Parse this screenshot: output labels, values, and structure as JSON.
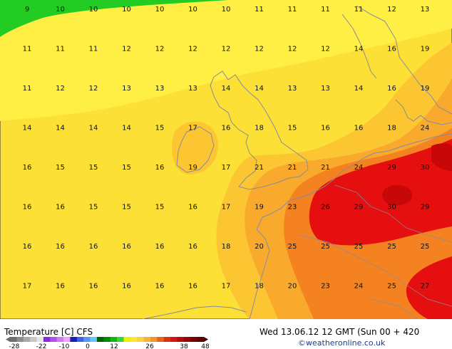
{
  "legend": {
    "title": "Temperature [C] CFS",
    "ticks": [
      "-28",
      "-22",
      "-10",
      "0",
      "12",
      "26",
      "38",
      "48"
    ],
    "colors": [
      "#6e6e6e",
      "#8c8c8c",
      "#aaaaaa",
      "#c8c8c8",
      "#e6e6e6",
      "#8a2be2",
      "#b450e6",
      "#d278f0",
      "#f0a0ff",
      "#1e1eb4",
      "#3c64e6",
      "#5a96f0",
      "#64c8fa",
      "#006400",
      "#008c00",
      "#14b414",
      "#3cd23c",
      "#f0f000",
      "#ffe632",
      "#fad23c",
      "#f5b43c",
      "#f09628",
      "#e6641e",
      "#dc3214",
      "#d21414",
      "#b40a0a",
      "#960505",
      "#780000",
      "#5a0000"
    ],
    "unit_colors_note": ""
  },
  "valid_time": "Wed 13.06.12 12 GMT (Sun 00 + 420",
  "credit": "©weatheronline.co.uk",
  "map_colors": {
    "green": "#22cc22",
    "lightyellow": "#ffee44",
    "yellow": "#fde035",
    "lightorange": "#fcc632",
    "orange": "#f9aa2c",
    "darkorange": "#f58220",
    "red": "#e60f0f",
    "darkred": "#c80808",
    "coast": "#8a8aa0"
  },
  "grid_rows": [
    [
      "9",
      "10",
      "10",
      "10",
      "10",
      "10",
      "10",
      "11",
      "11",
      "11",
      "11",
      "12",
      "13"
    ],
    [
      "11",
      "11",
      "11",
      "12",
      "12",
      "12",
      "12",
      "12",
      "12",
      "12",
      "14",
      "16",
      "19"
    ],
    [
      "11",
      "12",
      "12",
      "13",
      "13",
      "13",
      "14",
      "14",
      "13",
      "13",
      "14",
      "16",
      "19"
    ],
    [
      "14",
      "14",
      "14",
      "14",
      "15",
      "17",
      "16",
      "18",
      "15",
      "16",
      "16",
      "18",
      "24"
    ],
    [
      "16",
      "15",
      "15",
      "15",
      "16",
      "19",
      "17",
      "21",
      "21",
      "21",
      "24",
      "29",
      "30"
    ],
    [
      "16",
      "16",
      "15",
      "15",
      "15",
      "16",
      "17",
      "19",
      "23",
      "26",
      "29",
      "30",
      "29"
    ],
    [
      "16",
      "16",
      "16",
      "16",
      "16",
      "16",
      "18",
      "20",
      "25",
      "25",
      "25",
      "25",
      "25"
    ],
    [
      "17",
      "16",
      "16",
      "16",
      "16",
      "16",
      "17",
      "18",
      "20",
      "23",
      "24",
      "25",
      "27"
    ]
  ]
}
